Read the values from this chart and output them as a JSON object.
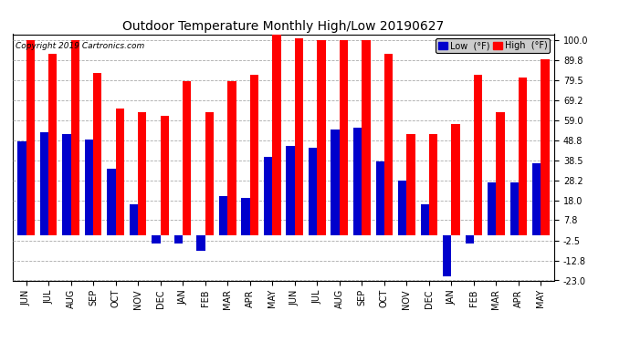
{
  "title": "Outdoor Temperature Monthly High/Low 20190627",
  "copyright": "Copyright 2019 Cartronics.com",
  "months": [
    "JUN",
    "JUL",
    "AUG",
    "SEP",
    "OCT",
    "NOV",
    "DEC",
    "JAN",
    "FEB",
    "MAR",
    "APR",
    "MAY",
    "JUN",
    "JUL",
    "AUG",
    "SEP",
    "OCT",
    "NOV",
    "DEC",
    "JAN",
    "FEB",
    "MAR",
    "APR",
    "MAY"
  ],
  "high_values": [
    100,
    93,
    100,
    83,
    65,
    63,
    61,
    79,
    63,
    79,
    82,
    103,
    101,
    100,
    100,
    100,
    93,
    52,
    52,
    57,
    82,
    63,
    81,
    90
  ],
  "low_values": [
    48,
    53,
    52,
    49,
    34,
    16,
    -4,
    -4,
    -8,
    20,
    19,
    40,
    46,
    45,
    54,
    55,
    38,
    28,
    16,
    -21,
    -4,
    27,
    27,
    37
  ],
  "bar_width": 0.38,
  "high_color": "#FF0000",
  "low_color": "#0000CC",
  "bg_color": "#FFFFFF",
  "plot_bg_color": "#FFFFFF",
  "grid_color": "#AAAAAA",
  "ylim_min": -23.0,
  "ylim_max": 103.0,
  "yticks": [
    100.0,
    89.8,
    79.5,
    69.2,
    59.0,
    48.8,
    38.5,
    28.2,
    18.0,
    7.8,
    -2.5,
    -12.8,
    -23.0
  ],
  "title_fontsize": 10,
  "tick_fontsize": 7,
  "legend_low_label": "Low  (°F)",
  "legend_high_label": "High  (°F)"
}
